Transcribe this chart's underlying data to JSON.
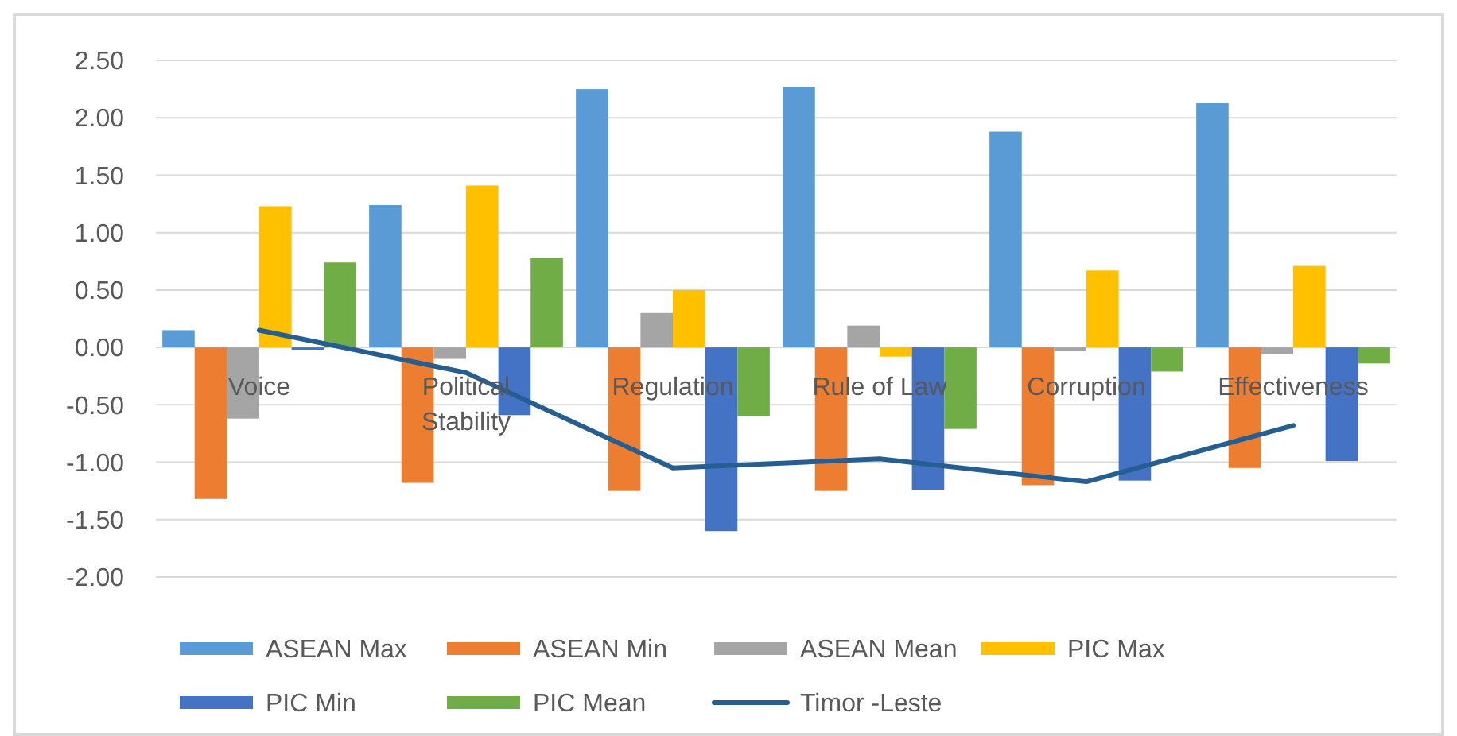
{
  "chart_data": {
    "type": "bar",
    "categories": [
      "Voice",
      "Political Stability",
      "Regulation",
      "Rule of Law",
      "Corruption",
      "Effectiveness"
    ],
    "series": [
      {
        "name": "ASEAN Max",
        "color": "#5b9bd5",
        "values": [
          0.15,
          1.24,
          2.25,
          2.27,
          1.88,
          2.13
        ]
      },
      {
        "name": "ASEAN Min",
        "color": "#ed7d31",
        "values": [
          -1.32,
          -1.18,
          -1.25,
          -1.25,
          -1.2,
          -1.05
        ]
      },
      {
        "name": "ASEAN Mean",
        "color": "#a5a5a5",
        "values": [
          -0.62,
          -0.1,
          0.3,
          0.19,
          -0.03,
          -0.06
        ]
      },
      {
        "name": "PIC Max",
        "color": "#ffc000",
        "values": [
          1.23,
          1.41,
          0.5,
          -0.08,
          0.67,
          0.71
        ]
      },
      {
        "name": "PIC Min",
        "color": "#4472c4",
        "values": [
          -0.02,
          -0.59,
          -1.6,
          -1.24,
          -1.16,
          -0.99
        ]
      },
      {
        "name": "PIC Mean",
        "color": "#70ad47",
        "values": [
          0.74,
          0.78,
          -0.6,
          -0.71,
          -0.21,
          -0.14
        ]
      },
      {
        "name": "Timor -Leste",
        "type": "line",
        "color": "#255e91",
        "values": [
          0.15,
          -0.22,
          -1.05,
          -0.97,
          -1.17,
          -0.68
        ]
      }
    ],
    "ylim": [
      -2,
      2.5
    ],
    "yticks": [
      {
        "value": -2,
        "label": "-2.00"
      },
      {
        "value": -1.5,
        "label": "-1.50"
      },
      {
        "value": -1,
        "label": "-1.00"
      },
      {
        "value": -0.5,
        "label": "-0.50"
      },
      {
        "value": 0,
        "label": "0.00"
      },
      {
        "value": 0.5,
        "label": "0.50"
      },
      {
        "value": 1,
        "label": "1.00"
      },
      {
        "value": 1.5,
        "label": "1.50"
      },
      {
        "value": 2,
        "label": "2.00"
      },
      {
        "value": 2.5,
        "label": "2.50"
      }
    ],
    "grid": "y",
    "legend": "bottom"
  }
}
